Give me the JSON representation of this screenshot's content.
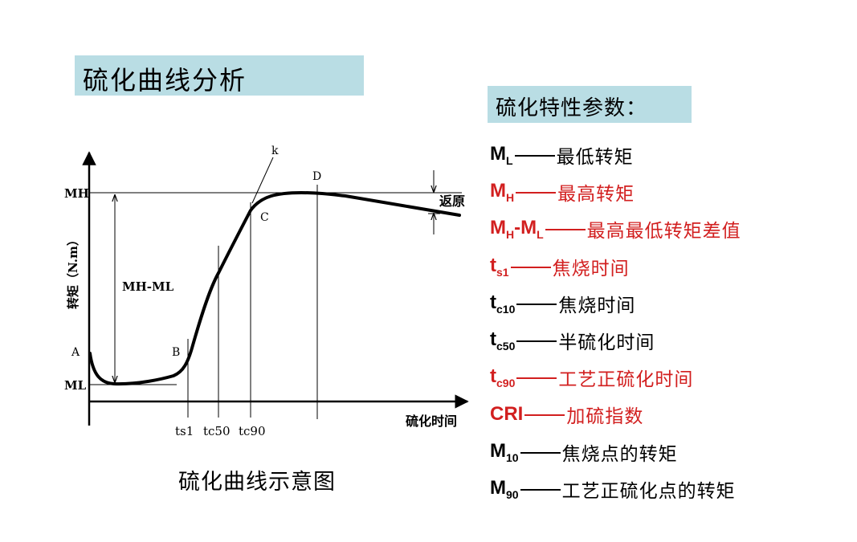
{
  "title": "硫化曲线分析",
  "params_heading": "硫化特性参数：",
  "caption": "硫化曲线示意图",
  "diagram": {
    "y_axis_label": "转矩（N.m）",
    "x_axis_label": "硫化时间",
    "mh_label": "MH",
    "ml_label": "ML",
    "diff_label": "MH-ML",
    "point_a": "A",
    "point_b": "B",
    "point_c": "C",
    "point_d": "D",
    "point_k": "k",
    "reversion_label": "返原",
    "ts1_label": "ts1",
    "tc50_label": "tc50",
    "tc90_label": "tc90"
  },
  "params": [
    {
      "sym": "M",
      "sub": "L",
      "tail": "",
      "desc": "最低转矩",
      "color": "black"
    },
    {
      "sym": "M",
      "sub": "H",
      "tail": "",
      "desc": "最高转矩",
      "color": "red"
    },
    {
      "sym": "M",
      "sub": "H",
      "tail": "-M",
      "sub2": "L",
      "desc": "最高最低转矩差值",
      "color": "red"
    },
    {
      "sym": "t",
      "sub": "s1",
      "tail": "",
      "desc": "焦烧时间",
      "color": "red"
    },
    {
      "sym": "t",
      "sub": "c10",
      "tail": "",
      "desc": "焦烧时间",
      "color": "black"
    },
    {
      "sym": "t",
      "sub": "c50",
      "tail": "",
      "desc": "半硫化时间",
      "color": "black"
    },
    {
      "sym": "t",
      "sub": "c90",
      "tail": "",
      "desc": "工艺正硫化时间",
      "color": "red"
    },
    {
      "sym": "CRI",
      "sub": "",
      "tail": "",
      "desc": "加硫指数",
      "color": "red"
    },
    {
      "sym": "M",
      "sub": "10",
      "tail": "",
      "desc": "焦烧点的转矩",
      "color": "black"
    },
    {
      "sym": "M",
      "sub": "90",
      "tail": "",
      "desc": "工艺正硫化点的转矩",
      "color": "black"
    }
  ],
  "colors": {
    "accent_box": "#b9dde4",
    "red": "#d21f1f",
    "black": "#000000"
  }
}
